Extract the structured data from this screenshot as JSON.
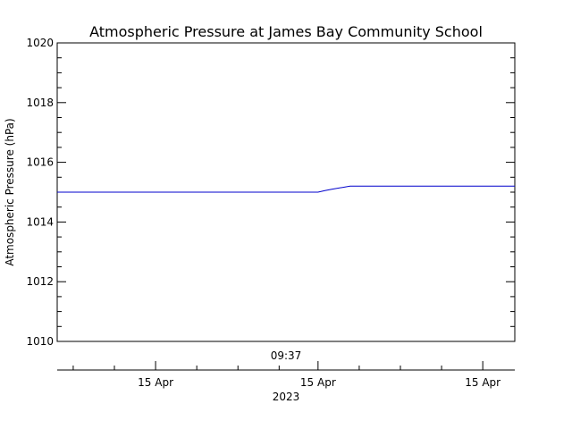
{
  "chart_data": {
    "type": "line",
    "title": "Atmospheric Pressure at James Bay Community School",
    "xlabel": "",
    "ylabel": "Atmospheric Pressure (hPa)",
    "ylim": [
      1010,
      1020
    ],
    "y_ticks": [
      1010,
      1012,
      1014,
      1016,
      1018,
      1020
    ],
    "y_tick_labels": [
      "1010",
      "1012",
      "1014",
      "1016",
      "1018",
      "1020"
    ],
    "x_tick_labels": [
      "15 Apr",
      "15 Apr",
      "15 Apr"
    ],
    "time_label": "09:37",
    "year_label": "2023",
    "grid": false,
    "series": [
      {
        "color": "#0000cc",
        "x": [
          0,
          0.5,
          0.57,
          0.585,
          0.6,
          0.64,
          1.0
        ],
        "y": [
          1015.0,
          1015.0,
          1015.0,
          1015.05,
          1015.1,
          1015.2,
          1015.2
        ]
      }
    ]
  }
}
